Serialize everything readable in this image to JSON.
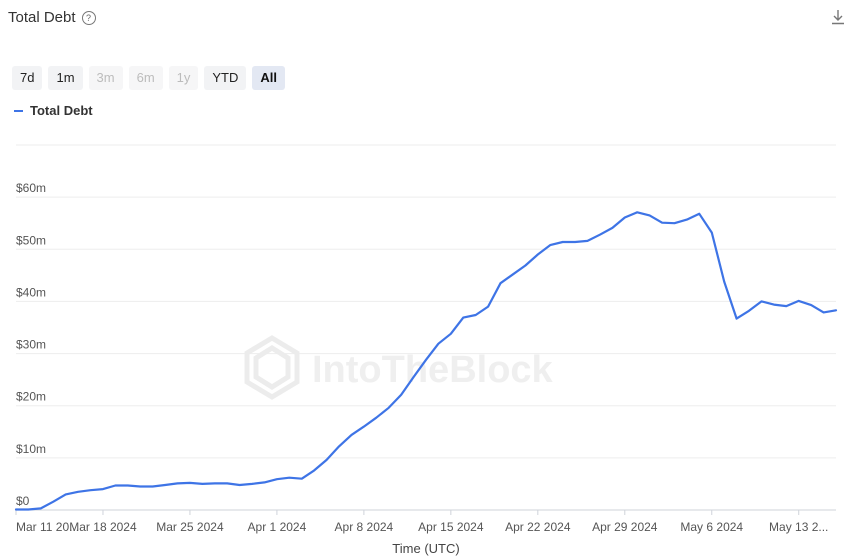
{
  "header": {
    "title": "Total Debt",
    "help_icon": "question-circle-icon",
    "download_icon": "download-icon"
  },
  "range": {
    "buttons": [
      {
        "label": "7d",
        "state": "normal"
      },
      {
        "label": "1m",
        "state": "normal"
      },
      {
        "label": "3m",
        "state": "disabled"
      },
      {
        "label": "6m",
        "state": "disabled"
      },
      {
        "label": "1y",
        "state": "disabled"
      },
      {
        "label": "YTD",
        "state": "normal"
      },
      {
        "label": "All",
        "state": "active"
      }
    ]
  },
  "watermark": "IntoTheBlock",
  "chart_data": {
    "type": "line",
    "title": "Total Debt",
    "xlabel": "Time (UTC)",
    "ylabel": "",
    "ylim": [
      0,
      70
    ],
    "y_ticks": [
      0,
      10,
      20,
      30,
      40,
      50,
      60
    ],
    "y_tick_labels": [
      "$0",
      "$10m",
      "$20m",
      "$30m",
      "$40m",
      "$50m",
      "$60m"
    ],
    "x_ticks": [
      {
        "day": 0,
        "label": "Mar 11 20..."
      },
      {
        "day": 7,
        "label": "Mar 18 2024"
      },
      {
        "day": 14,
        "label": "Mar 25 2024"
      },
      {
        "day": 21,
        "label": "Apr 1 2024"
      },
      {
        "day": 28,
        "label": "Apr 8 2024"
      },
      {
        "day": 35,
        "label": "Apr 15 2024"
      },
      {
        "day": 42,
        "label": "Apr 22 2024"
      },
      {
        "day": 49,
        "label": "Apr 29 2024"
      },
      {
        "day": 56,
        "label": "May 6 2024"
      },
      {
        "day": 63,
        "label": "May 13 2..."
      }
    ],
    "grid": true,
    "legend": "top-left",
    "color": "#3e74e6",
    "series": [
      {
        "name": "Total Debt",
        "points": [
          [
            0,
            0.1
          ],
          [
            1,
            0.1
          ],
          [
            2,
            0.3
          ],
          [
            3,
            1.6
          ],
          [
            4,
            3.0
          ],
          [
            5,
            3.5
          ],
          [
            6,
            3.8
          ],
          [
            7,
            4.0
          ],
          [
            8,
            4.7
          ],
          [
            9,
            4.7
          ],
          [
            10,
            4.5
          ],
          [
            11,
            4.5
          ],
          [
            12,
            4.8
          ],
          [
            13,
            5.1
          ],
          [
            14,
            5.2
          ],
          [
            15,
            5.0
          ],
          [
            16,
            5.1
          ],
          [
            17,
            5.1
          ],
          [
            18,
            4.8
          ],
          [
            19,
            5.0
          ],
          [
            20,
            5.3
          ],
          [
            21,
            5.9
          ],
          [
            22,
            6.2
          ],
          [
            23,
            6.0
          ],
          [
            24,
            7.6
          ],
          [
            25,
            9.6
          ],
          [
            26,
            12.2
          ],
          [
            27,
            14.4
          ],
          [
            28,
            16.0
          ],
          [
            29,
            17.7
          ],
          [
            30,
            19.6
          ],
          [
            31,
            22.1
          ],
          [
            32,
            25.5
          ],
          [
            33,
            28.8
          ],
          [
            34,
            31.9
          ],
          [
            35,
            33.8
          ],
          [
            36,
            36.9
          ],
          [
            37,
            37.4
          ],
          [
            38,
            39.0
          ],
          [
            39,
            43.5
          ],
          [
            40,
            45.2
          ],
          [
            41,
            46.9
          ],
          [
            42,
            49.0
          ],
          [
            43,
            50.8
          ],
          [
            44,
            51.4
          ],
          [
            45,
            51.4
          ],
          [
            46,
            51.6
          ],
          [
            47,
            52.8
          ],
          [
            48,
            54.1
          ],
          [
            49,
            56.1
          ],
          [
            50,
            57.1
          ],
          [
            51,
            56.5
          ],
          [
            52,
            55.1
          ],
          [
            53,
            55.0
          ],
          [
            54,
            55.7
          ],
          [
            55,
            56.8
          ],
          [
            56,
            53.2
          ],
          [
            57,
            43.8
          ],
          [
            58,
            36.7
          ],
          [
            59,
            38.2
          ],
          [
            60,
            40.0
          ],
          [
            61,
            39.4
          ],
          [
            62,
            39.1
          ],
          [
            63,
            40.1
          ],
          [
            64,
            39.3
          ],
          [
            65,
            37.9
          ],
          [
            66,
            38.3
          ]
        ]
      }
    ]
  }
}
